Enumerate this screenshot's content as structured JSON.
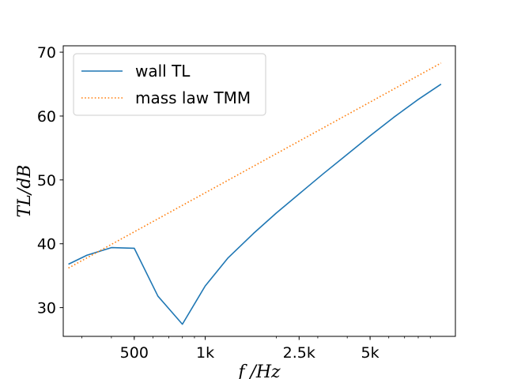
{
  "chart_data": {
    "type": "line",
    "xlabel": "f /Hz",
    "ylabel": "TL/dB",
    "xscale": "log",
    "xlim": [
      250,
      11500
    ],
    "ylim": [
      25.5,
      71
    ],
    "x_ticks": [
      {
        "value": 500,
        "label": "500"
      },
      {
        "value": 1000,
        "label": "1k"
      },
      {
        "value": 2500,
        "label": "2.5k"
      },
      {
        "value": 5000,
        "label": "5k"
      }
    ],
    "y_ticks": [
      {
        "value": 30,
        "label": "30"
      },
      {
        "value": 40,
        "label": "40"
      },
      {
        "value": 50,
        "label": "50"
      },
      {
        "value": 60,
        "label": "60"
      },
      {
        "value": 70,
        "label": "70"
      }
    ],
    "grid": false,
    "legend_position": "top-left",
    "series": [
      {
        "name": "wall TL",
        "color": "#1f77b4",
        "style": "solid",
        "x": [
          263,
          315,
          400,
          500,
          630,
          800,
          1000,
          1250,
          1600,
          2000,
          2500,
          3150,
          4000,
          5000,
          6300,
          8000,
          10000
        ],
        "y": [
          36.8,
          38.2,
          39.4,
          39.3,
          31.8,
          27.4,
          33.4,
          37.8,
          41.6,
          44.8,
          47.8,
          50.9,
          54.0,
          56.9,
          59.8,
          62.6,
          65.0
        ]
      },
      {
        "name": "mass law TMM",
        "color": "#ff7f0e",
        "style": "dotted",
        "x": [
          263,
          10000
        ],
        "y": [
          36.2,
          68.3
        ]
      }
    ]
  }
}
